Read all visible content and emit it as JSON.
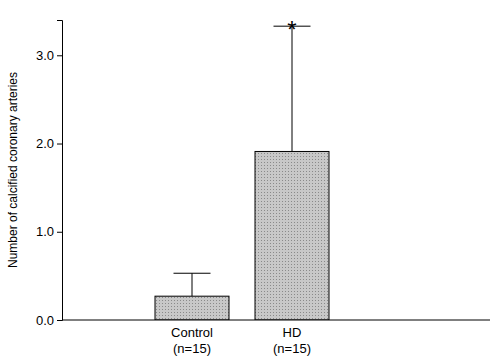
{
  "chart_data": {
    "type": "bar",
    "y_label": "Number of calcified coronary arteries",
    "categories": [
      "Control\n(n=15)",
      "HD\n(n=15)"
    ],
    "values": [
      0.27,
      1.91
    ],
    "errors": [
      0.26,
      1.42
    ],
    "color": "#c8c8c8",
    "ylim": [
      0,
      3.4
    ],
    "yticks": [
      {
        "value": 0,
        "label": "0.0"
      },
      {
        "value": 1,
        "label": "1.0"
      },
      {
        "value": 2,
        "label": "2.0"
      },
      {
        "value": 3,
        "label": "3.0"
      }
    ],
    "grid": false,
    "annotations": [
      {
        "text": "*",
        "category": "HD\n(n=15)"
      }
    ]
  }
}
